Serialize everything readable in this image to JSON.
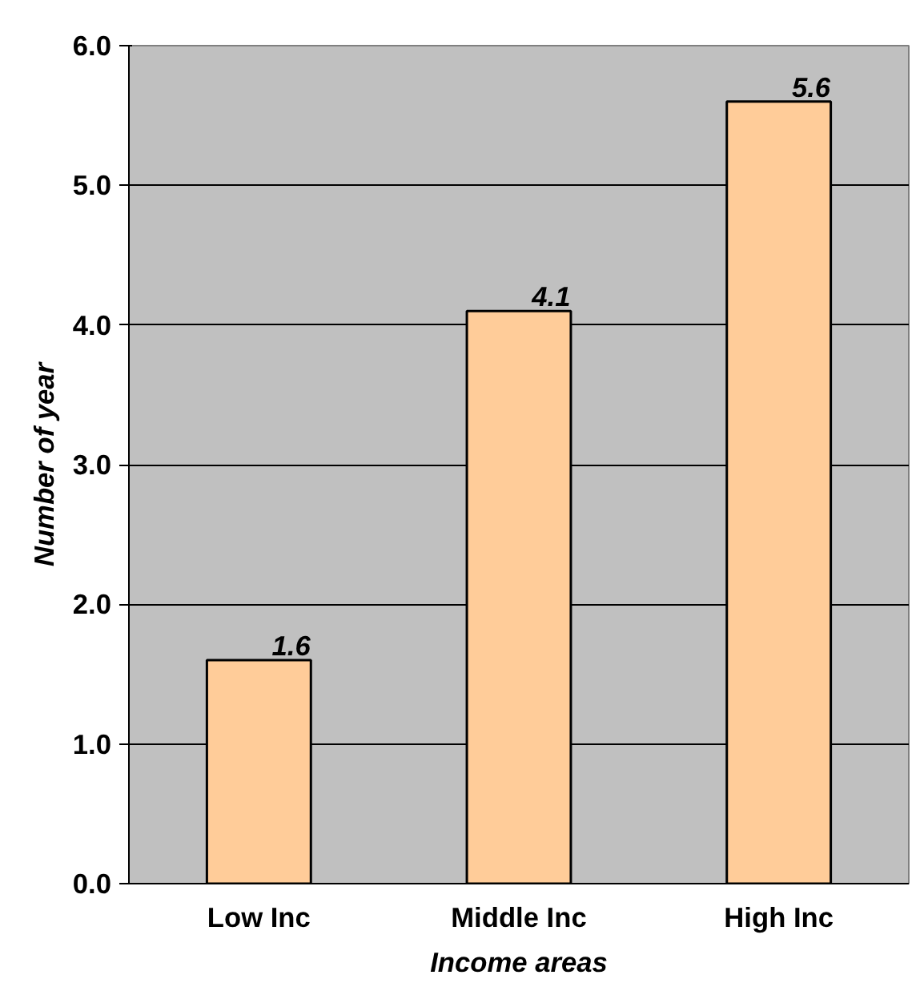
{
  "chart_data": {
    "type": "bar",
    "xlabel": "Income areas",
    "ylabel": "Number of year",
    "categories": [
      "Low Inc",
      "Middle Inc",
      "High Inc"
    ],
    "values": [
      1.6,
      4.1,
      5.6
    ],
    "color": "#ffcc99",
    "data_labels": true,
    "ylim": [
      0,
      6
    ],
    "yticks": [
      {
        "value": 0,
        "label": "0.0"
      },
      {
        "value": 1,
        "label": "1.0"
      },
      {
        "value": 2,
        "label": "2.0"
      },
      {
        "value": 3,
        "label": "3.0"
      },
      {
        "value": 4,
        "label": "4.0"
      },
      {
        "value": 5,
        "label": "5.0"
      },
      {
        "value": 6,
        "label": "6.0"
      }
    ],
    "grid": "y"
  }
}
